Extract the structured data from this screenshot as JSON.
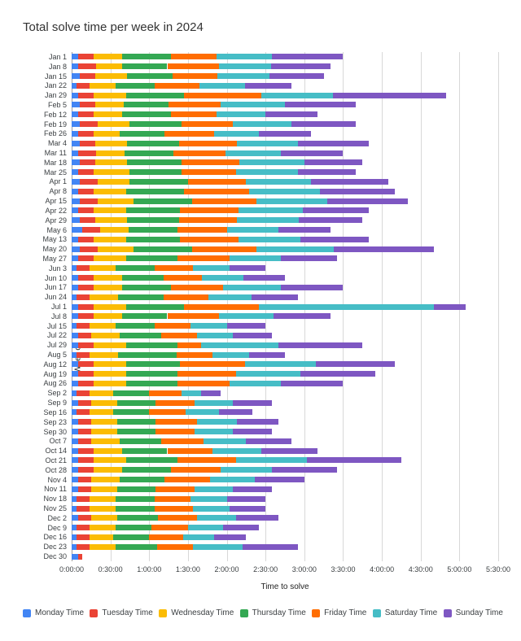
{
  "chart_data": {
    "type": "bar",
    "orientation": "horizontal",
    "stacked": true,
    "title": "Total solve time per week in 2024",
    "xlabel": "Time to solve",
    "ylabel": "Week of",
    "legend_position": "bottom",
    "grid": true,
    "value_unit": "minutes",
    "xlim_minutes": [
      0,
      330
    ],
    "x_ticks": [
      "0:00:00",
      "0:30:00",
      "1:00:00",
      "1:30:00",
      "2:00:00",
      "2:30:00",
      "3:00:00",
      "3:30:00",
      "4:00:00",
      "4:30:00",
      "5:00:00",
      "5:30:00"
    ],
    "categories": [
      "Jan 1",
      "Jan 8",
      "Jan 15",
      "Jan 22",
      "Jan 29",
      "Feb 5",
      "Feb 12",
      "Feb 19",
      "Feb 26",
      "Mar 4",
      "Mar 11",
      "Mar 18",
      "Mar 25",
      "Apr 1",
      "Apr 8",
      "Apr 15",
      "Apr 22",
      "Apr 29",
      "May 6",
      "May 13",
      "May 20",
      "May 27",
      "Jun 3",
      "Jun 10",
      "Jun 17",
      "Jun 24",
      "Jul 1",
      "Jul 8",
      "Jul 15",
      "Jul 22",
      "Jul 29",
      "Aug 5",
      "Aug 12",
      "Aug 19",
      "Aug 26",
      "Sep 2",
      "Sep 9",
      "Sep 16",
      "Sep 23",
      "Sep 30",
      "Oct 7",
      "Oct 14",
      "Oct 21",
      "Oct 28",
      "Nov 4",
      "Nov 11",
      "Nov 18",
      "Nov 25",
      "Dec 2",
      "Dec 9",
      "Dec 16",
      "Dec 23",
      "Dec 30"
    ],
    "series": [
      {
        "name": "Monday Time",
        "color": "#4285F4",
        "values": [
          5,
          5,
          6,
          4,
          5,
          6,
          5,
          6,
          5,
          6,
          5,
          6,
          5,
          6,
          5,
          6,
          5,
          6,
          8,
          5,
          6,
          5,
          4,
          5,
          5,
          4,
          5,
          5,
          4,
          5,
          5,
          4,
          5,
          5,
          5,
          4,
          5,
          4,
          5,
          5,
          5,
          5,
          5,
          5,
          5,
          5,
          4,
          4,
          5,
          4,
          4,
          4,
          5
        ]
      },
      {
        "name": "Tuesday Time",
        "color": "#EA4335",
        "values": [
          12,
          14,
          12,
          10,
          12,
          12,
          12,
          14,
          12,
          12,
          14,
          12,
          12,
          14,
          12,
          14,
          12,
          12,
          14,
          12,
          14,
          12,
          10,
          12,
          12,
          10,
          12,
          12,
          10,
          10,
          12,
          10,
          12,
          12,
          12,
          10,
          10,
          10,
          10,
          10,
          10,
          12,
          12,
          12,
          10,
          10,
          10,
          10,
          10,
          10,
          10,
          10,
          3
        ]
      },
      {
        "name": "Wednesday Time",
        "color": "#FBBC04",
        "values": [
          22,
          20,
          25,
          20,
          25,
          22,
          22,
          25,
          20,
          25,
          22,
          25,
          28,
          25,
          25,
          28,
          25,
          25,
          22,
          25,
          28,
          25,
          20,
          22,
          22,
          22,
          25,
          22,
          20,
          22,
          25,
          22,
          25,
          25,
          25,
          18,
          20,
          18,
          20,
          20,
          22,
          22,
          25,
          22,
          22,
          20,
          20,
          20,
          20,
          20,
          18,
          20,
          0
        ]
      },
      {
        "name": "Thursday Time",
        "color": "#34A853",
        "values": [
          38,
          35,
          35,
          30,
          45,
          35,
          38,
          40,
          35,
          40,
          38,
          42,
          40,
          45,
          45,
          45,
          42,
          40,
          38,
          42,
          45,
          40,
          30,
          32,
          38,
          35,
          45,
          35,
          30,
          32,
          40,
          45,
          42,
          40,
          40,
          28,
          30,
          28,
          30,
          30,
          32,
          35,
          40,
          38,
          35,
          30,
          30,
          30,
          32,
          28,
          28,
          32,
          0
        ]
      },
      {
        "name": "Friday Time",
        "color": "#FF6D01",
        "values": [
          35,
          40,
          35,
          35,
          60,
          40,
          35,
          40,
          38,
          45,
          40,
          45,
          42,
          45,
          50,
          50,
          45,
          45,
          38,
          45,
          50,
          40,
          30,
          30,
          40,
          35,
          58,
          40,
          28,
          28,
          18,
          28,
          50,
          45,
          40,
          25,
          30,
          28,
          32,
          30,
          33,
          35,
          45,
          38,
          35,
          30,
          28,
          30,
          30,
          28,
          26,
          28,
          0
        ]
      },
      {
        "name": "Saturday Time",
        "color": "#46BDC6",
        "values": [
          43,
          40,
          40,
          35,
          55,
          50,
          38,
          45,
          35,
          47,
          43,
          50,
          48,
          50,
          55,
          55,
          50,
          48,
          40,
          48,
          60,
          40,
          28,
          32,
          45,
          33,
          135,
          42,
          28,
          28,
          60,
          28,
          55,
          50,
          40,
          15,
          30,
          26,
          31,
          30,
          33,
          38,
          55,
          40,
          35,
          30,
          28,
          28,
          30,
          27,
          24,
          38,
          0
        ]
      },
      {
        "name": "Sunday Time",
        "color": "#7E57C2",
        "values": [
          55,
          46,
          42,
          36,
          88,
          55,
          40,
          50,
          40,
          55,
          48,
          45,
          45,
          60,
          58,
          62,
          51,
          49,
          40,
          53,
          77,
          43,
          28,
          32,
          48,
          36,
          25,
          44,
          30,
          30,
          65,
          28,
          61,
          58,
          48,
          15,
          30,
          26,
          32,
          30,
          35,
          43,
          73,
          50,
          38,
          30,
          30,
          28,
          33,
          28,
          25,
          43,
          0
        ]
      }
    ]
  }
}
